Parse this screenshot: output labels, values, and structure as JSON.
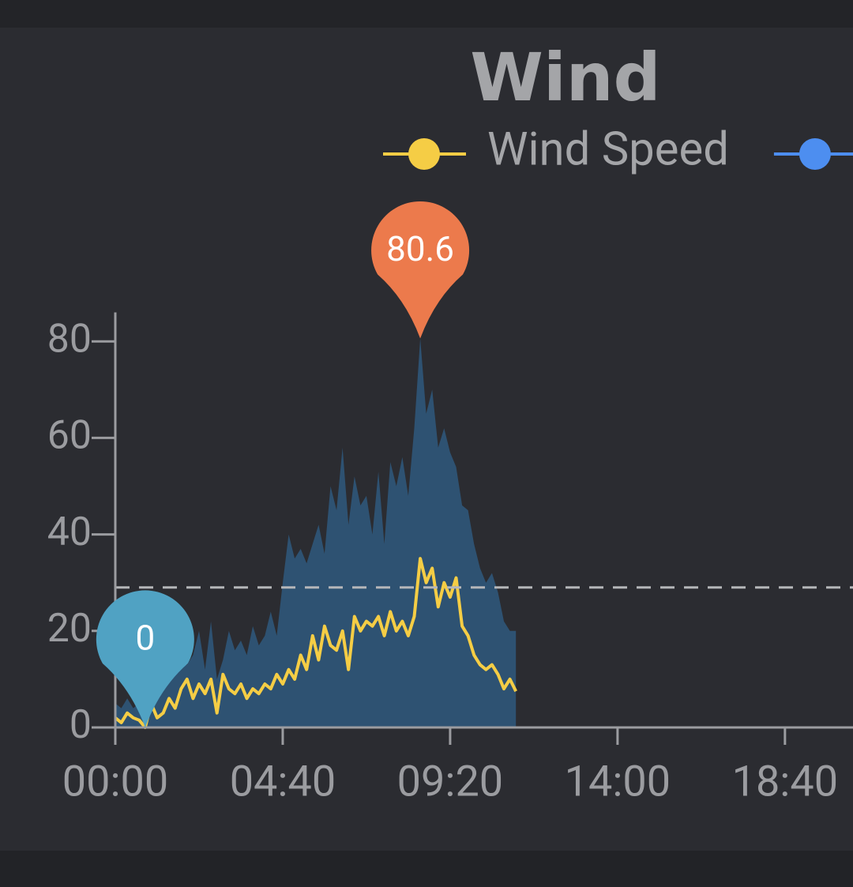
{
  "chart_data": {
    "type": "line",
    "title": "Wind",
    "x": [
      0,
      10,
      20,
      30,
      40,
      50,
      60,
      70,
      80,
      90,
      100,
      110,
      120,
      130,
      140,
      150,
      160,
      170,
      180,
      190,
      200,
      210,
      220,
      230,
      240,
      250,
      260,
      270,
      280,
      290,
      300,
      310,
      320,
      330,
      340,
      350,
      360,
      370,
      380,
      390,
      400,
      410,
      420,
      430,
      440,
      450,
      460,
      470,
      480,
      490,
      500,
      510,
      520,
      530,
      540,
      550,
      560,
      570,
      580,
      590,
      600,
      610,
      620,
      630,
      640,
      650,
      660,
      670
    ],
    "series": [
      {
        "name": "Wind Speed",
        "color": "#f5cd45",
        "style": "line",
        "values": [
          2,
          1,
          3,
          2,
          1.5,
          0,
          5,
          2,
          3,
          6,
          4,
          8,
          10,
          6,
          9,
          7,
          10,
          3,
          11,
          8,
          7,
          9,
          6,
          8,
          7,
          9,
          8,
          11,
          9,
          12,
          10,
          15,
          12,
          19,
          14,
          21,
          17,
          16,
          20,
          12,
          23,
          20,
          22,
          21,
          23,
          19,
          24,
          20,
          22,
          19,
          23,
          35,
          30,
          33,
          25,
          30,
          27,
          31,
          21,
          19,
          15,
          13,
          12,
          13,
          11,
          8,
          10,
          7.5
        ]
      },
      {
        "color": "#4d8ef0",
        "style": "area",
        "area_color": "#2e5272",
        "values": [
          5,
          4,
          6,
          4,
          5,
          3,
          8,
          7,
          9,
          12,
          11,
          14,
          13,
          15,
          20,
          12,
          22,
          10,
          14,
          20,
          16,
          18,
          15,
          21,
          17,
          19,
          24,
          19,
          30,
          40,
          35,
          37,
          34,
          38,
          42,
          36,
          50,
          45,
          58,
          42,
          52,
          46,
          48,
          40,
          53,
          38,
          55,
          50,
          56,
          48,
          62,
          80.6,
          65,
          70,
          58,
          62,
          57,
          54,
          46,
          45,
          38,
          33,
          30,
          32,
          28,
          22,
          20,
          20
        ]
      }
    ],
    "xlim": [
      0,
      1440
    ],
    "xticks": [
      {
        "value": 0,
        "label": "00:00"
      },
      {
        "value": 280,
        "label": "04:40"
      },
      {
        "value": 560,
        "label": "09:20"
      },
      {
        "value": 840,
        "label": "14:00"
      },
      {
        "value": 1120,
        "label": "18:40"
      }
    ],
    "ylim": [
      0,
      86
    ],
    "yticks": [
      0,
      20,
      40,
      60,
      80
    ],
    "mark_line": 29,
    "max_pin_color": "#ec7a4c",
    "min_pin_color": "#50a2c3"
  }
}
